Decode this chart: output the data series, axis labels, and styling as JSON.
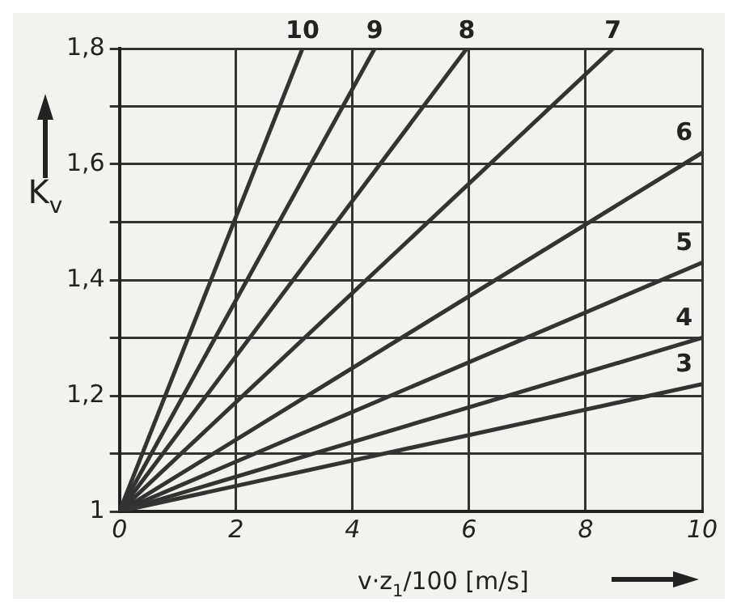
{
  "chart_data": {
    "type": "line",
    "xlabel": "v·z$_{1}$/100 [m/s]",
    "ylabel": "K$_{v}$",
    "xlim": [
      0,
      10
    ],
    "xticks": [
      0,
      2,
      4,
      6,
      8,
      10
    ],
    "ylim": [
      1,
      1.8
    ],
    "yticks": [
      1,
      {
        "value": 1.1,
        "label": null
      },
      {
        "value": 1.2,
        "label": "1,2"
      },
      {
        "value": 1.3,
        "label": null
      },
      {
        "value": 1.4,
        "label": "1,4"
      },
      {
        "value": 1.5,
        "label": null
      },
      {
        "value": 1.6,
        "label": "1,6"
      },
      {
        "value": 1.7,
        "label": null
      },
      {
        "value": 1.8,
        "label": "1,8"
      }
    ],
    "grid": true,
    "legend": false,
    "marker": "none",
    "line_style": "solid",
    "series": [
      {
        "name": "10",
        "color": "#333333",
        "x": [
          0,
          3.14
        ],
        "values": [
          1,
          1.8
        ]
      },
      {
        "name": "9",
        "color": "#333333",
        "x": [
          0,
          4.38
        ],
        "values": [
          1,
          1.8
        ]
      },
      {
        "name": "8",
        "color": "#333333",
        "x": [
          0,
          5.96
        ],
        "values": [
          1,
          1.8
        ]
      },
      {
        "name": "7",
        "color": "#333333",
        "x": [
          0,
          8.47
        ],
        "values": [
          1,
          1.8
        ]
      },
      {
        "name": "6",
        "color": "#333333",
        "x": [
          0,
          10
        ],
        "values": [
          1,
          1.62
        ]
      },
      {
        "name": "5",
        "color": "#333333",
        "x": [
          0,
          10
        ],
        "values": [
          1,
          1.43
        ]
      },
      {
        "name": "4",
        "color": "#333333",
        "x": [
          0,
          10
        ],
        "values": [
          1,
          1.3
        ]
      },
      {
        "name": "3",
        "color": "#333333",
        "x": [
          0,
          10
        ],
        "values": [
          1,
          1.22
        ]
      }
    ]
  }
}
